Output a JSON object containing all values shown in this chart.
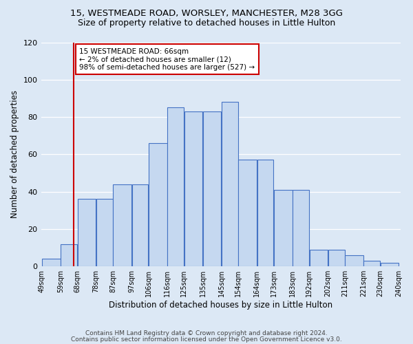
{
  "title1": "15, WESTMEADE ROAD, WORSLEY, MANCHESTER, M28 3GG",
  "title2": "Size of property relative to detached houses in Little Hulton",
  "xlabel": "Distribution of detached houses by size in Little Hulton",
  "ylabel": "Number of detached properties",
  "bin_labels": [
    "49sqm",
    "59sqm",
    "68sqm",
    "78sqm",
    "87sqm",
    "97sqm",
    "106sqm",
    "116sqm",
    "125sqm",
    "135sqm",
    "145sqm",
    "154sqm",
    "164sqm",
    "173sqm",
    "183sqm",
    "192sqm",
    "202sqm",
    "211sqm",
    "221sqm",
    "230sqm",
    "240sqm"
  ],
  "bar_heights": [
    4,
    12,
    36,
    36,
    44,
    44,
    66,
    85,
    83,
    83,
    88,
    57,
    57,
    41,
    41,
    9,
    9,
    6,
    3,
    2
  ],
  "bar_color": "#c5d8f0",
  "bar_edge_color": "#4472c4",
  "property_line_x": 66,
  "property_line_color": "#cc0000",
  "annotation_line1": "15 WESTMEADE ROAD: 66sqm",
  "annotation_line2": "← 2% of detached houses are smaller (12)",
  "annotation_line3": "98% of semi-detached houses are larger (527) →",
  "annotation_box_edge": "#cc0000",
  "ylim": [
    0,
    120
  ],
  "yticks": [
    0,
    20,
    40,
    60,
    80,
    100,
    120
  ],
  "background_color": "#dce8f5",
  "footer1": "Contains HM Land Registry data © Crown copyright and database right 2024.",
  "footer2": "Contains public sector information licensed under the Open Government Licence v3.0."
}
